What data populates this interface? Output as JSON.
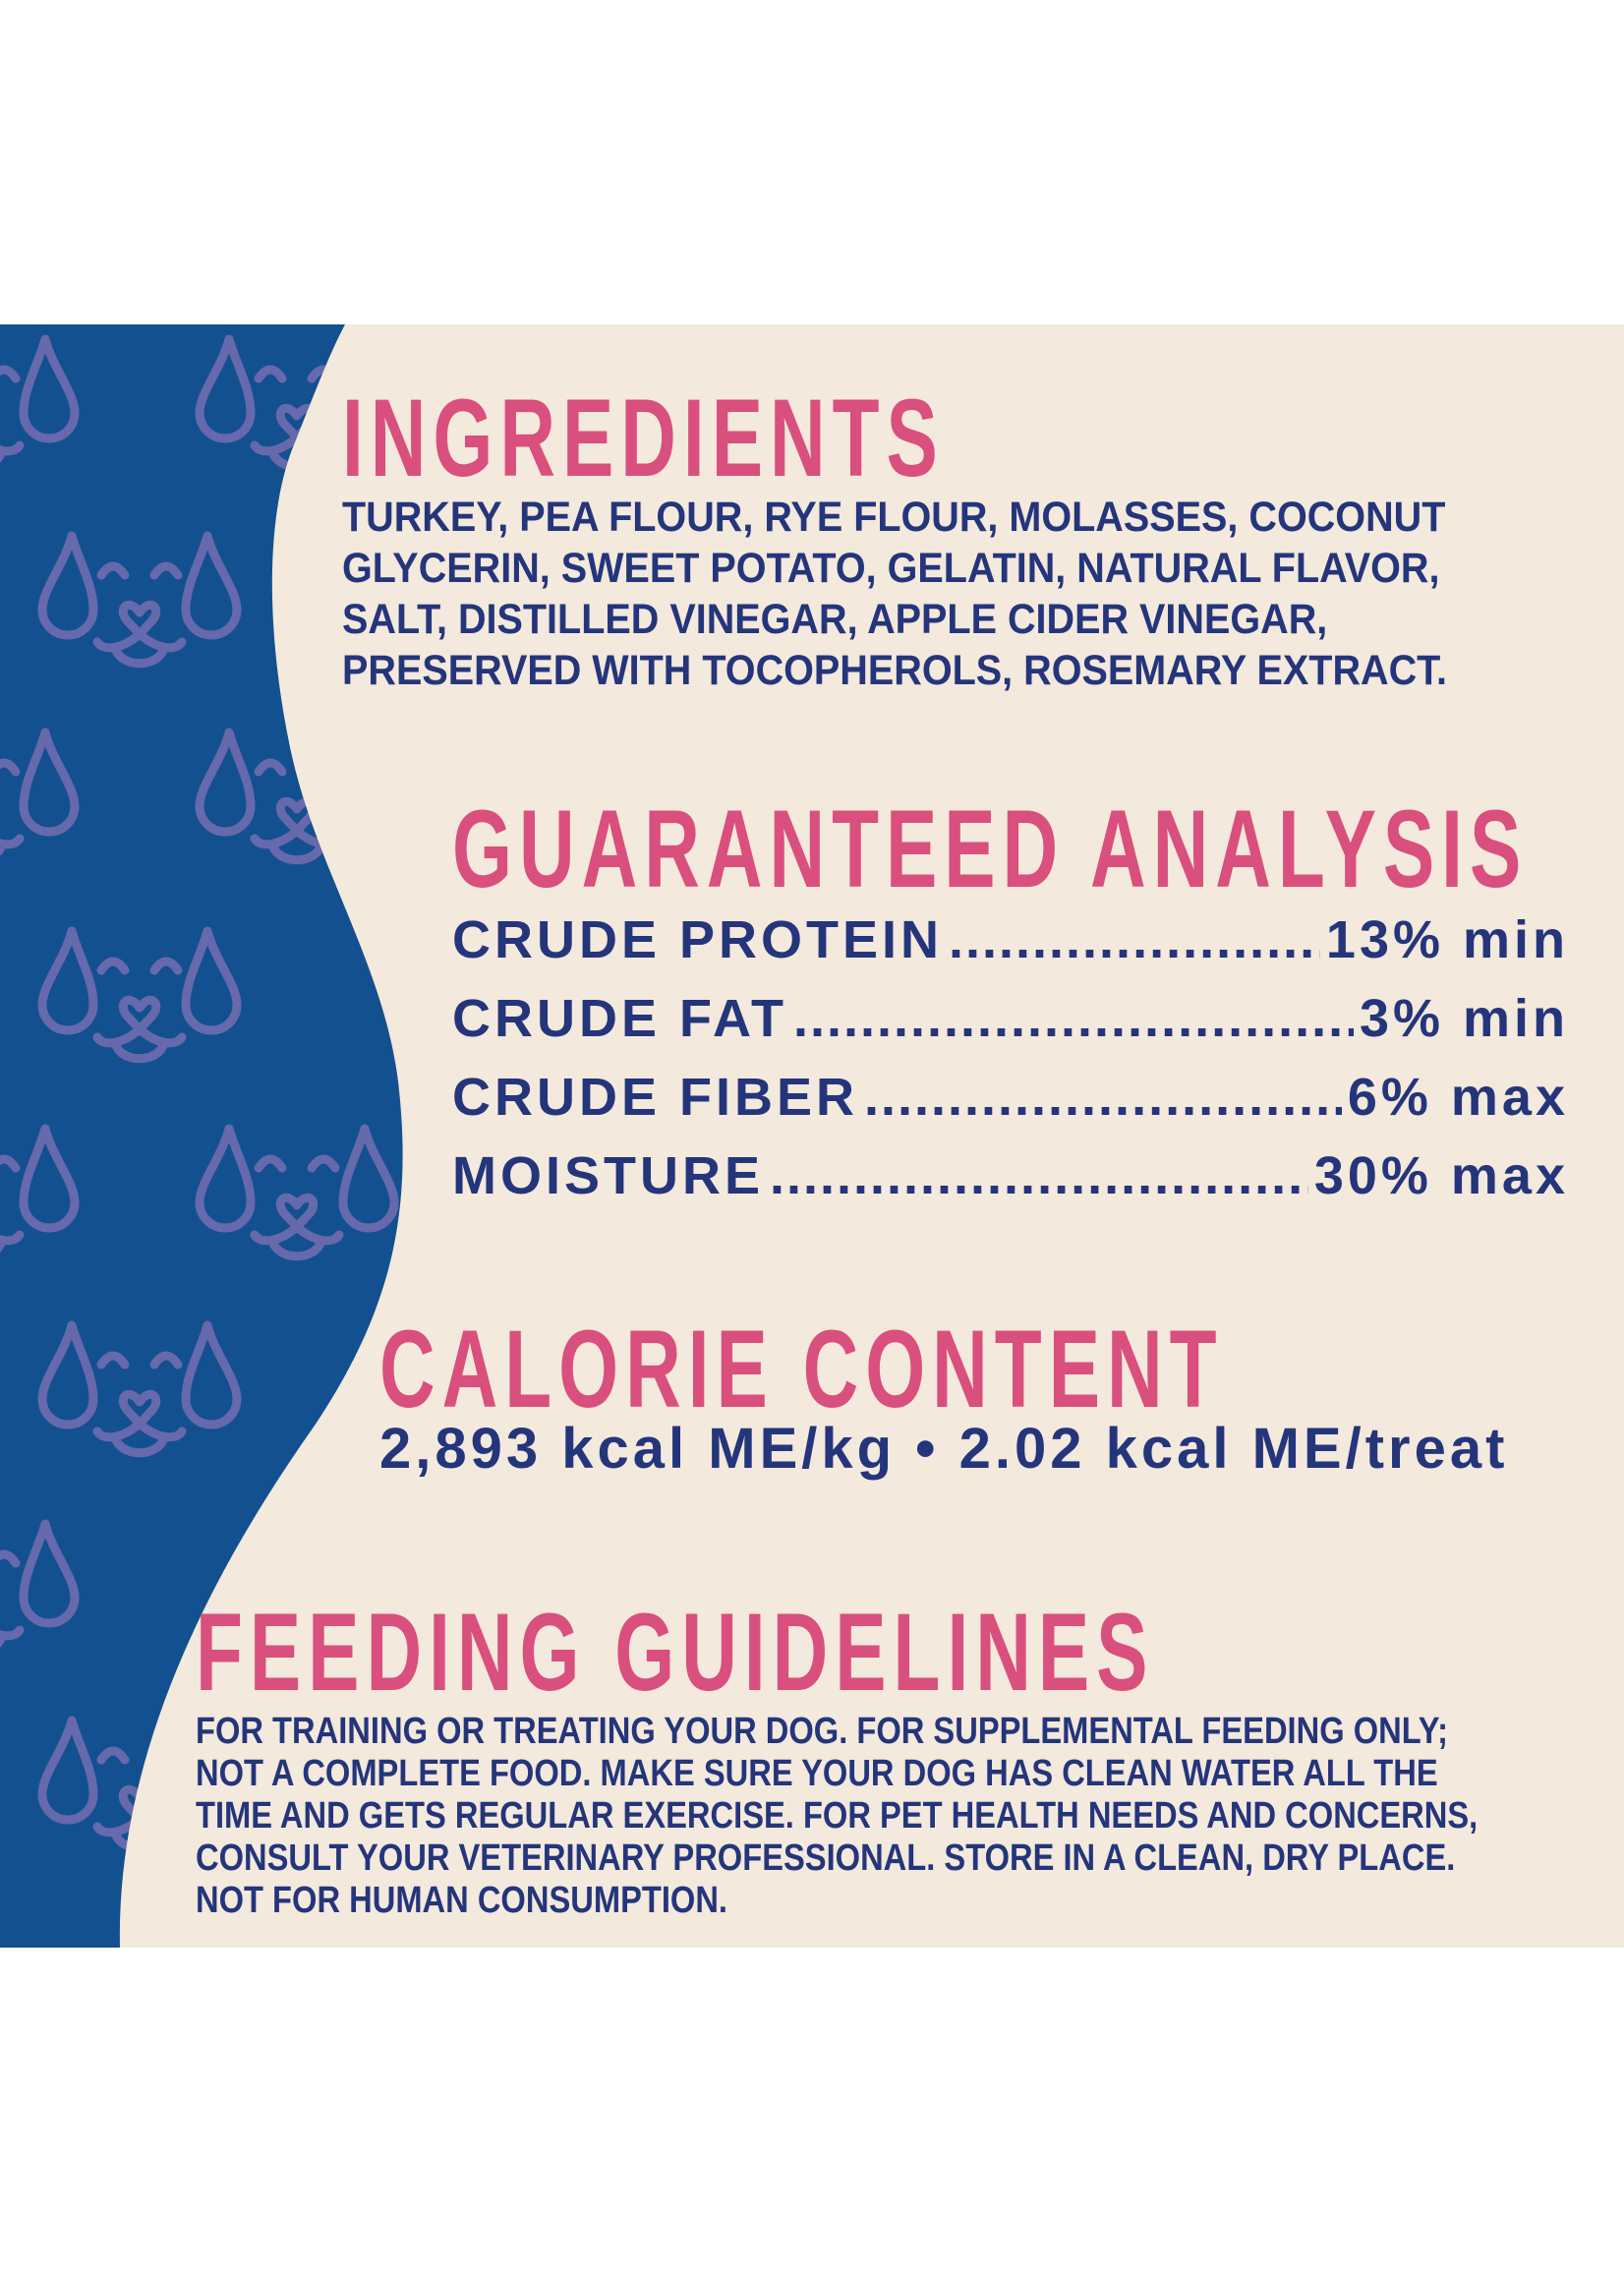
{
  "colors": {
    "background_blue": "#13508f",
    "panel_cream": "#f3e9dc",
    "heading_pink": "#d94f7d",
    "text_navy": "#24357b",
    "pattern_icon": "#6669ab"
  },
  "pattern": {
    "icon": "dog-face-icon"
  },
  "ingredients": {
    "title": "INGREDIENTS",
    "lines": [
      "TURKEY, PEA FLOUR, RYE FLOUR, MOLASSES, COCONUT",
      "GLYCERIN, SWEET POTATO, GELATIN, NATURAL FLAVOR,",
      "SALT, DISTILLED VINEGAR, APPLE CIDER VINEGAR,",
      "PRESERVED WITH TOCOPHEROLS, ROSEMARY EXTRACT."
    ]
  },
  "guaranteed_analysis": {
    "title": "GUARANTEED ANALYSIS",
    "rows": [
      {
        "label": "CRUDE PROTEIN",
        "value": "13% min"
      },
      {
        "label": "CRUDE FAT",
        "value": "3% min"
      },
      {
        "label": "CRUDE FIBER",
        "value": "6% max"
      },
      {
        "label": "MOISTURE",
        "value": "30% max"
      }
    ]
  },
  "calorie_content": {
    "title": "CALORIE CONTENT",
    "text": "2,893 kcal ME/kg • 2.02 kcal ME/treat"
  },
  "feeding_guidelines": {
    "title": "FEEDING GUIDELINES",
    "lines": [
      "FOR TRAINING OR TREATING YOUR DOG. FOR SUPPLEMENTAL FEEDING ONLY;",
      "NOT A COMPLETE FOOD. MAKE SURE YOUR DOG HAS CLEAN WATER ALL THE",
      "TIME AND GETS REGULAR EXERCISE. FOR PET HEALTH NEEDS AND CONCERNS,",
      "CONSULT YOUR VETERINARY PROFESSIONAL. STORE IN  A CLEAN, DRY PLACE.",
      "NOT FOR HUMAN CONSUMPTION."
    ]
  }
}
